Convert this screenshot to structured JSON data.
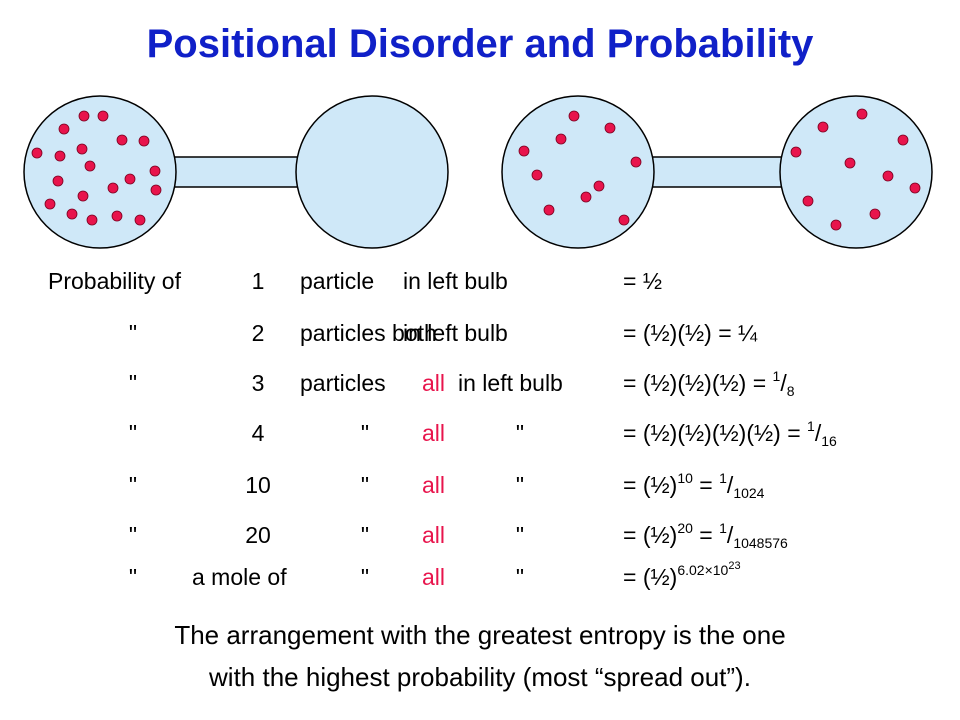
{
  "title": "Positional Disorder and Probability",
  "diagram": {
    "left_apparatus_label": "",
    "right_apparatus_label": ""
  },
  "table": {
    "rows": [
      {
        "a": "Probability of",
        "n": "1",
        "b": "particle",
        "c": "",
        "d": "in left bulb",
        "eq": "= ½",
        "base": "",
        "exp": "",
        "frac_num": "",
        "frac_den": ""
      },
      {
        "a": "\"",
        "n": "2",
        "b": "particles both",
        "c": "",
        "d": "in left bulb",
        "eq": "= (½)(½) = ¼",
        "base": "",
        "exp": "",
        "frac_num": "",
        "frac_den": ""
      },
      {
        "a": "\"",
        "n": "3",
        "b": "particles",
        "c": "all",
        "d": "in left bulb",
        "eq": "= (½)(½)(½) =",
        "base": "",
        "exp": "",
        "frac_num": "1",
        "frac_den": "8"
      },
      {
        "a": "\"",
        "n": "4",
        "b": "\"",
        "c": "all",
        "d": "\"",
        "eq": "= (½)(½)(½)(½) =",
        "base": "",
        "exp": "",
        "frac_num": "1",
        "frac_den": "16"
      },
      {
        "a": "\"",
        "n": "10",
        "b": "\"",
        "c": "all",
        "d": "\"",
        "eq": "= (½)",
        "base": "",
        "exp": "10",
        "tail": " =",
        "frac_num": "1",
        "frac_den": "1024"
      },
      {
        "a": "\"",
        "n": "20",
        "b": "\"",
        "c": "all",
        "d": "\"",
        "eq": "= (½)",
        "base": "",
        "exp": "20",
        "tail": " =",
        "frac_num": "1",
        "frac_den": "1048576"
      },
      {
        "a": "\"",
        "n": "a mole of",
        "b": "\"",
        "c": "all",
        "d": "\"",
        "eq": "= (½)",
        "base": "",
        "exp": "6.02×10",
        "exp2": "23",
        "tail": "",
        "frac_num": "",
        "frac_den": ""
      }
    ]
  },
  "conclusion": {
    "line1": "The arrangement with the greatest entropy is the one",
    "line2": "with the highest probability (most “spread out”)."
  },
  "colors": {
    "title": "#1020c8",
    "bulb_fill": "#cfe8f8",
    "particle": "#e8144c",
    "highlight": "#e8144c"
  }
}
